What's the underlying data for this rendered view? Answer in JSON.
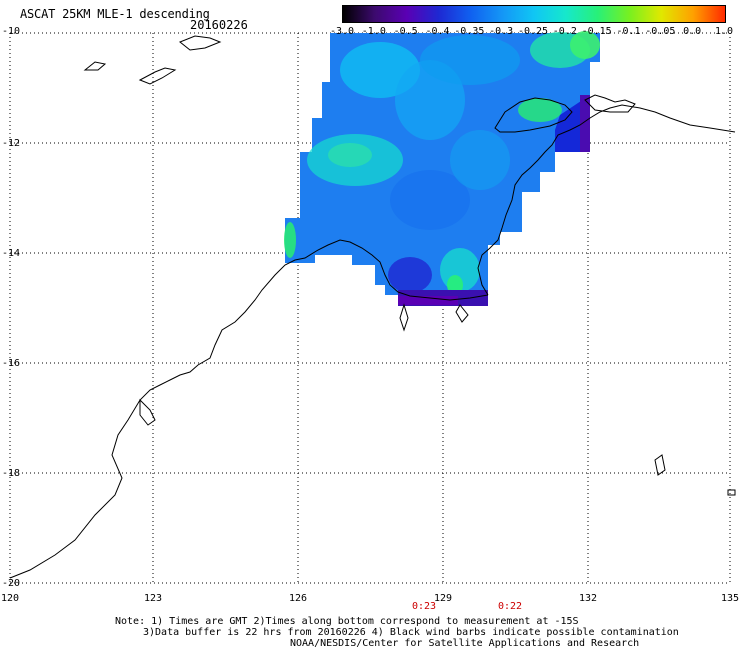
{
  "header": {
    "title": "ASCAT 25KM MLE-1 descending",
    "date": "20160226"
  },
  "colorbar": {
    "labels": [
      "-3.0",
      "-1.0",
      "-0.5",
      "-0.4",
      "-0.35",
      "-0.3",
      "-0.25",
      "-0.2",
      "-0.15",
      "-0.1",
      "-0.05",
      "0.0",
      "1.0"
    ],
    "colors": [
      "#000000",
      "#3c0a6e",
      "#5a00b4",
      "#1e28d2",
      "#1060f0",
      "#1496f6",
      "#10c6f4",
      "#16e8cc",
      "#28f078",
      "#78f020",
      "#e0e800",
      "#ffa000",
      "#ff2a00"
    ]
  },
  "axes": {
    "lat_labels": [
      "-10",
      "-12",
      "-14",
      "-16",
      "-18",
      "-20"
    ],
    "lon_labels": [
      "120",
      "123",
      "126",
      "129",
      "132",
      "135"
    ]
  },
  "times": [
    "0:23",
    "0:22"
  ],
  "notes": {
    "line1": "Note: 1) Times are GMT 2)Times along bottom correspond to measurement at -15S",
    "line2": "3)Data buffer is 22 hrs from 20160226 4) Black wind barbs indicate possible contamination",
    "line3": "NOAA/NESDIS/Center for Satellite Applications and Research"
  }
}
